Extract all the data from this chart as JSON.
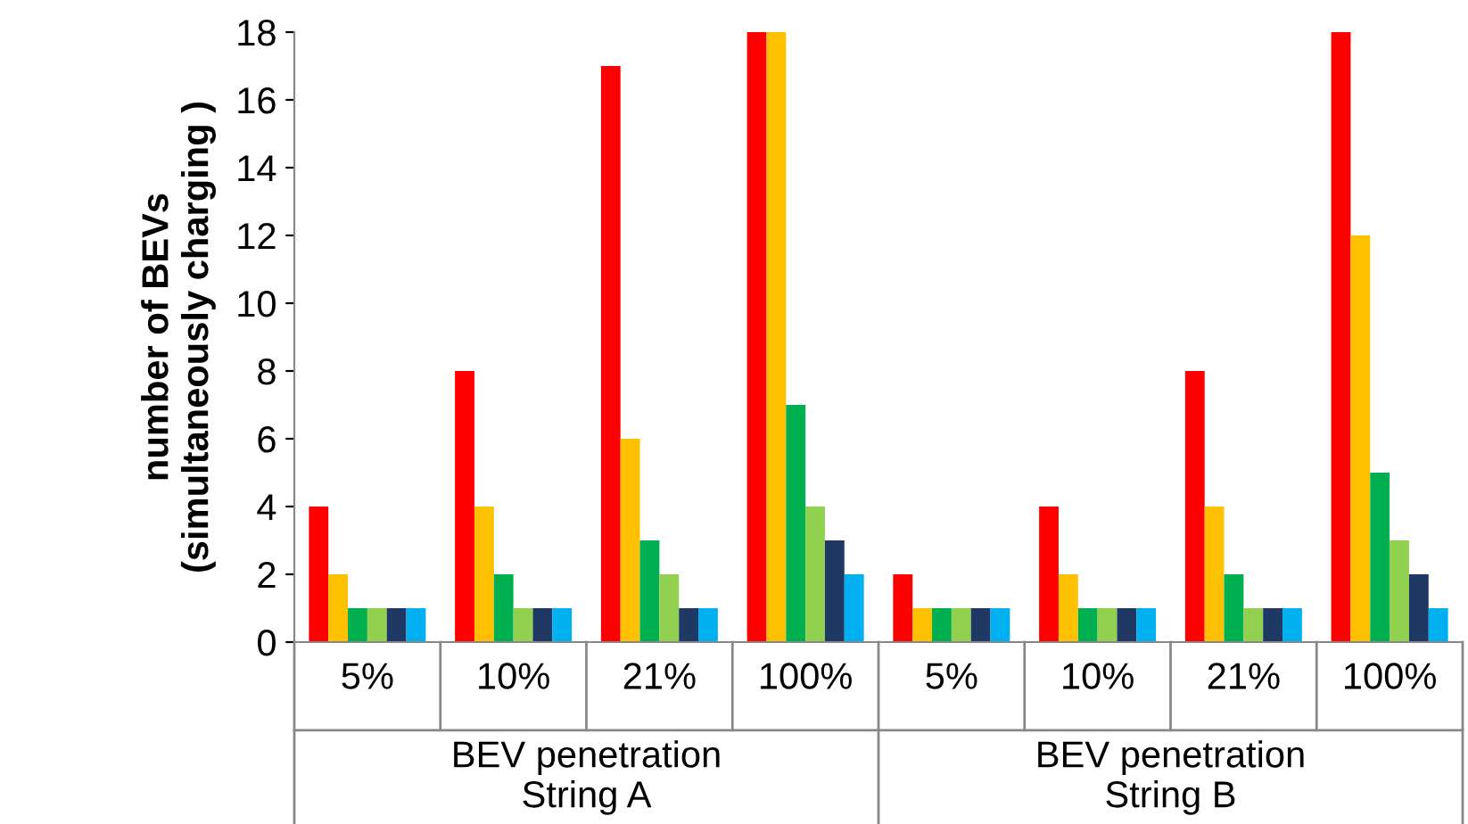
{
  "chart_data": {
    "type": "bar",
    "ylabel": "number of BEVs\n(simultaneously charging )",
    "categories": [
      "5%",
      "10%",
      "21%",
      "100%",
      "5%",
      "10%",
      "21%",
      "100%"
    ],
    "series": [
      {
        "color": "#ff0000",
        "values": [
          4,
          8,
          17,
          18,
          2,
          4,
          8,
          18
        ]
      },
      {
        "color": "#ffc000",
        "values": [
          2,
          4,
          6,
          18,
          1,
          2,
          4,
          12
        ]
      },
      {
        "color": "#00b050",
        "values": [
          1,
          2,
          3,
          7,
          1,
          1,
          2,
          5
        ]
      },
      {
        "color": "#92d050",
        "values": [
          1,
          1,
          2,
          4,
          1,
          1,
          1,
          3
        ]
      },
      {
        "color": "#203864",
        "values": [
          1,
          1,
          1,
          3,
          1,
          1,
          1,
          2
        ]
      },
      {
        "color": "#00b0f0",
        "values": [
          1,
          1,
          1,
          2,
          1,
          1,
          1,
          1
        ]
      }
    ],
    "annotations": [
      "BEV penetration\nString A",
      "BEV penetration\nString B"
    ],
    "ylim": [
      0,
      18
    ],
    "yticks": [
      0,
      2,
      4,
      6,
      8,
      10,
      12,
      14,
      16,
      18
    ],
    "grid": false,
    "legend": false
  }
}
